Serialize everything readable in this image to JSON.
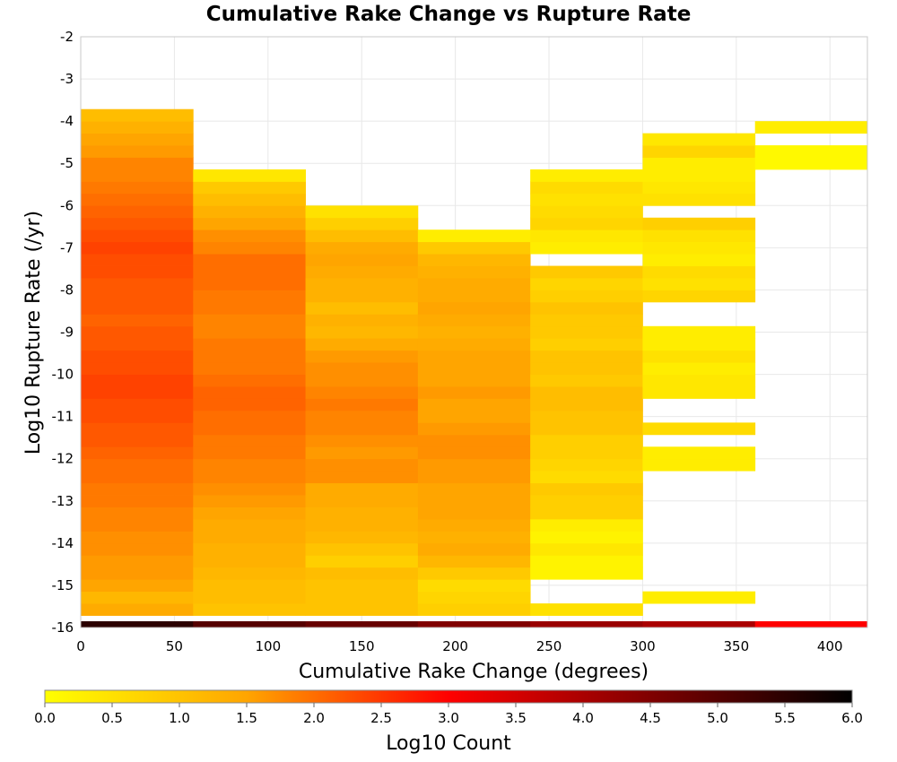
{
  "chart_data": {
    "type": "heatmap",
    "title": "Cumulative Rake Change vs Rupture Rate",
    "xlabel": "Cumulative Rake Change (degrees)",
    "ylabel": "Log10 Rupture Rate (/yr)",
    "colorbar_label": "Log10 Count",
    "xlim": [
      0,
      420
    ],
    "ylim": [
      -16,
      -2
    ],
    "x_ticks": [
      0,
      50,
      100,
      150,
      200,
      250,
      300,
      350,
      400
    ],
    "y_ticks": [
      -2,
      -3,
      -4,
      -5,
      -6,
      -7,
      -8,
      -9,
      -10,
      -11,
      -12,
      -13,
      -14,
      -15,
      -16
    ],
    "colorbar_range": [
      0,
      6
    ],
    "colorbar_ticks": [
      "0.0",
      "0.5",
      "1.0",
      "1.5",
      "2.0",
      "2.5",
      "3.0",
      "3.5",
      "4.0",
      "4.5",
      "5.0",
      "5.5",
      "6.0"
    ],
    "colorscale": [
      "#ffff00",
      "#ffa500",
      "#ff0000",
      "#000000"
    ],
    "x_bin_width": 60,
    "y_bin_height": 0.2857,
    "y_bin_start": -16,
    "grid": true,
    "columns": [
      {
        "x_start": 0,
        "values": [
          5.5,
          1.4,
          1.2,
          1.5,
          1.6,
          1.6,
          1.7,
          1.7,
          1.8,
          1.8,
          1.9,
          1.9,
          2.0,
          2.0,
          2.1,
          2.2,
          2.2,
          2.3,
          2.3,
          2.4,
          2.4,
          2.3,
          2.3,
          2.2,
          2.2,
          2.1,
          2.2,
          2.2,
          2.2,
          2.3,
          2.3,
          2.4,
          2.3,
          2.2,
          2.1,
          2.0,
          1.9,
          1.8,
          1.8,
          1.6,
          1.5,
          1.3,
          1.1
        ]
      },
      {
        "x_start": 60,
        "values": [
          5.0,
          1.0,
          1.1,
          1.1,
          1.2,
          1.3,
          1.3,
          1.4,
          1.4,
          1.5,
          1.6,
          1.7,
          1.8,
          1.8,
          1.9,
          1.9,
          2.0,
          2.0,
          2.1,
          2.1,
          2.0,
          1.9,
          1.9,
          1.9,
          1.8,
          1.8,
          1.9,
          1.9,
          2.0,
          2.0,
          2.0,
          1.8,
          1.7,
          1.5,
          1.3,
          1.1,
          0.9,
          0.4,
          null,
          null,
          null,
          null,
          null
        ]
      },
      {
        "x_start": 120,
        "values": [
          4.8,
          1.0,
          1.0,
          1.0,
          1.1,
          0.8,
          1.0,
          1.2,
          1.3,
          1.3,
          1.4,
          1.4,
          1.7,
          1.7,
          1.6,
          1.7,
          1.8,
          1.8,
          1.9,
          1.8,
          1.7,
          1.7,
          1.6,
          1.4,
          1.2,
          1.3,
          1.1,
          1.3,
          1.3,
          1.4,
          1.5,
          1.4,
          1.1,
          0.8,
          0.5,
          null,
          null,
          null,
          null,
          null,
          null,
          null,
          null
        ]
      },
      {
        "x_start": 180,
        "values": [
          4.5,
          0.8,
          0.7,
          0.6,
          0.9,
          1.2,
          1.4,
          1.3,
          1.4,
          1.5,
          1.5,
          1.5,
          1.6,
          1.6,
          1.7,
          1.7,
          1.6,
          1.5,
          1.5,
          1.6,
          1.5,
          1.5,
          1.5,
          1.4,
          1.3,
          1.4,
          1.5,
          1.4,
          1.4,
          1.3,
          1.2,
          0.9,
          0.3,
          null,
          null,
          null,
          null,
          null,
          null,
          null,
          null,
          null,
          null
        ]
      },
      {
        "x_start": 240,
        "values": [
          4.2,
          0.5,
          null,
          null,
          0.2,
          0.2,
          0.4,
          0.2,
          0.3,
          0.8,
          0.8,
          0.9,
          0.6,
          0.7,
          0.8,
          0.8,
          1.0,
          1.0,
          1.1,
          1.1,
          0.9,
          1.0,
          1.0,
          0.8,
          0.9,
          0.9,
          1.0,
          0.8,
          0.7,
          0.9,
          null,
          0.3,
          0.4,
          0.7,
          0.6,
          0.5,
          0.6,
          0.3,
          null,
          null,
          null,
          null,
          null
        ]
      },
      {
        "x_start": 300,
        "values": [
          4.0,
          null,
          0.3,
          null,
          null,
          null,
          null,
          null,
          null,
          null,
          null,
          null,
          null,
          0.3,
          0.3,
          null,
          0.6,
          null,
          null,
          0.4,
          0.4,
          0.3,
          0.5,
          0.3,
          0.3,
          null,
          null,
          0.7,
          0.5,
          0.6,
          0.3,
          0.4,
          0.5,
          0.8,
          null,
          0.5,
          0.4,
          0.3,
          0.3,
          0.7,
          0.4,
          null,
          null
        ]
      },
      {
        "x_start": 360,
        "values": [
          3.0,
          null,
          null,
          null,
          null,
          null,
          null,
          null,
          null,
          null,
          null,
          null,
          null,
          null,
          null,
          null,
          null,
          null,
          null,
          null,
          null,
          null,
          null,
          null,
          null,
          null,
          null,
          null,
          null,
          null,
          null,
          null,
          null,
          null,
          null,
          null,
          null,
          null,
          0.1,
          0.1,
          null,
          0.3,
          null
        ]
      }
    ]
  }
}
